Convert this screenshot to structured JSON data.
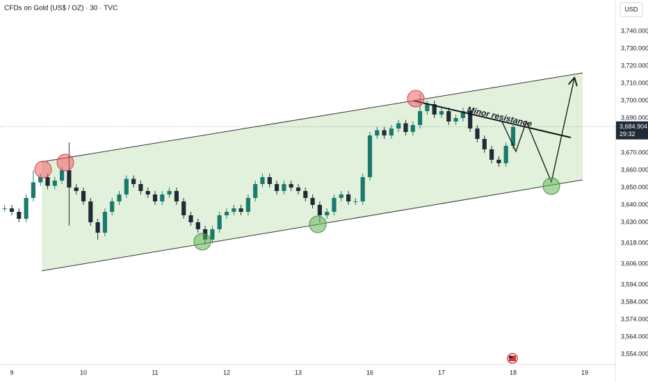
{
  "chart_data": {
    "type": "candlestick",
    "title": "CFDs on Gold (US$ / OZ) · 30 · TVC",
    "currency": "USD",
    "annotation": "Minor resistance",
    "last_price_label": "3,684.904",
    "countdown": "29:32",
    "up_color": "#1b7a6e",
    "down_color": "#1f2b36",
    "grid": false,
    "xlim": [
      -0.165,
      8.427
    ],
    "ylim": [
      3548,
      3758
    ],
    "xticks": [
      {
        "value": 0,
        "label": "9"
      },
      {
        "value": 1,
        "label": "10"
      },
      {
        "value": 2,
        "label": "11"
      },
      {
        "value": 3,
        "label": "12"
      },
      {
        "value": 4,
        "label": "13"
      },
      {
        "value": 5,
        "label": "16"
      },
      {
        "value": 6,
        "label": "17"
      },
      {
        "value": 7,
        "label": "18"
      },
      {
        "value": 8,
        "label": "19"
      }
    ],
    "yticks": [
      {
        "value": 3740,
        "label": "3,740.000"
      },
      {
        "value": 3730,
        "label": "3,730.000"
      },
      {
        "value": 3720,
        "label": "3,720.000"
      },
      {
        "value": 3710,
        "label": "3,710.000"
      },
      {
        "value": 3700,
        "label": "3,700.000"
      },
      {
        "value": 3690,
        "label": "3,690.000"
      },
      {
        "value": 3670,
        "label": "3,670.000"
      },
      {
        "value": 3660,
        "label": "3,660.000"
      },
      {
        "value": 3650,
        "label": "3,650.000"
      },
      {
        "value": 3640,
        "label": "3,640.000"
      },
      {
        "value": 3630,
        "label": "3,630.000"
      },
      {
        "value": 3618,
        "label": "3,618.000"
      },
      {
        "value": 3606,
        "label": "3,606.000"
      },
      {
        "value": 3594,
        "label": "3,594.000"
      },
      {
        "value": 3584,
        "label": "3,584.000"
      },
      {
        "value": 3574,
        "label": "3,574.000"
      },
      {
        "value": 3564,
        "label": "3,564.000"
      },
      {
        "value": 3554,
        "label": "3,554.000"
      }
    ],
    "x": [
      -0.2,
      -0.1,
      0,
      0.1,
      0.2,
      0.3,
      0.4,
      0.5,
      0.6,
      0.7,
      0.8,
      0.9,
      1,
      1.1,
      1.2,
      1.3,
      1.4,
      1.5,
      1.6,
      1.7,
      1.8,
      1.9,
      2,
      2.1,
      2.2,
      2.3,
      2.4,
      2.5,
      2.6,
      2.7,
      2.8,
      2.9,
      3,
      3.1,
      3.2,
      3.3,
      3.4,
      3.5,
      3.6,
      3.7,
      3.8,
      3.9,
      4,
      4.1,
      4.2,
      4.3,
      4.4,
      4.5,
      4.6,
      4.7,
      4.8,
      4.9,
      5,
      5.1,
      5.2,
      5.3,
      5.4,
      5.5,
      5.6,
      5.7,
      5.8,
      5.9,
      6,
      6.1,
      6.2,
      6.3,
      6.4,
      6.5,
      6.6,
      6.7,
      6.8,
      6.9,
      7
    ],
    "open": [
      3640,
      3638,
      3638,
      3636,
      3632,
      3644,
      3653,
      3656,
      3651,
      3654,
      3660,
      3650,
      3648,
      3642,
      3630,
      3624,
      3636,
      3642,
      3646,
      3655,
      3652,
      3648,
      3646,
      3642,
      3646,
      3648,
      3642,
      3634,
      3630,
      3626,
      3620,
      3626,
      3634,
      3636,
      3638,
      3636,
      3644,
      3652,
      3656,
      3652,
      3648,
      3652,
      3650,
      3648,
      3644,
      3640,
      3634,
      3636,
      3644,
      3646,
      3642,
      3642,
      3656,
      3680,
      3683,
      3680,
      3684,
      3687,
      3682,
      3686,
      3694,
      3698,
      3692,
      3694,
      3688,
      3690,
      3694,
      3684,
      3678,
      3672,
      3666,
      3664,
      3674
    ],
    "high": [
      3642,
      3640,
      3640,
      3638,
      3646,
      3660,
      3658,
      3658,
      3656,
      3662,
      3676,
      3652,
      3650,
      3644,
      3632,
      3638,
      3644,
      3648,
      3657,
      3657,
      3654,
      3650,
      3648,
      3648,
      3650,
      3650,
      3644,
      3636,
      3632,
      3628,
      3628,
      3636,
      3638,
      3640,
      3640,
      3646,
      3654,
      3658,
      3658,
      3654,
      3654,
      3654,
      3652,
      3650,
      3646,
      3642,
      3638,
      3646,
      3648,
      3648,
      3644,
      3658,
      3682,
      3685,
      3685,
      3686,
      3689,
      3689,
      3688,
      3704,
      3700,
      3700,
      3696,
      3696,
      3692,
      3696,
      3696,
      3686,
      3680,
      3674,
      3668,
      3676,
      3686
    ],
    "low": [
      3636,
      3636,
      3634,
      3630,
      3630,
      3642,
      3651,
      3649,
      3649,
      3652,
      3628,
      3646,
      3640,
      3628,
      3620,
      3622,
      3634,
      3640,
      3644,
      3650,
      3646,
      3644,
      3640,
      3640,
      3644,
      3640,
      3632,
      3628,
      3624,
      3617,
      3618,
      3624,
      3632,
      3634,
      3634,
      3634,
      3642,
      3650,
      3650,
      3646,
      3646,
      3648,
      3646,
      3642,
      3638,
      3630,
      3632,
      3634,
      3642,
      3640,
      3640,
      3640,
      3654,
      3678,
      3678,
      3678,
      3682,
      3680,
      3680,
      3684,
      3692,
      3690,
      3690,
      3686,
      3686,
      3688,
      3682,
      3676,
      3670,
      3664,
      3662,
      3662,
      3672
    ],
    "close": [
      3638,
      3638,
      3636,
      3632,
      3644,
      3653,
      3656,
      3651,
      3654,
      3660,
      3650,
      3648,
      3642,
      3630,
      3624,
      3636,
      3642,
      3646,
      3655,
      3652,
      3648,
      3646,
      3642,
      3646,
      3648,
      3642,
      3634,
      3630,
      3626,
      3620,
      3626,
      3634,
      3636,
      3638,
      3636,
      3644,
      3652,
      3656,
      3652,
      3648,
      3652,
      3650,
      3648,
      3644,
      3640,
      3634,
      3636,
      3644,
      3646,
      3642,
      3642,
      3656,
      3680,
      3683,
      3680,
      3684,
      3687,
      3682,
      3686,
      3694,
      3698,
      3692,
      3694,
      3688,
      3690,
      3694,
      3684,
      3678,
      3672,
      3666,
      3664,
      3674,
      3684.904
    ]
  }
}
